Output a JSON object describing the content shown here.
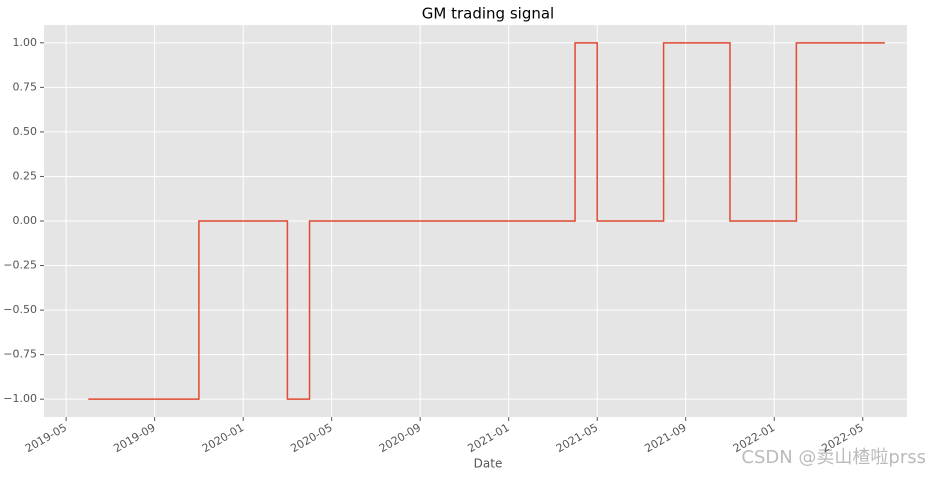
{
  "chart_data": {
    "type": "line",
    "title": "GM trading signal",
    "xlabel": "Date",
    "watermark": "CSDN @卖山楂啦prss",
    "x": [
      "2019-06",
      "2019-11",
      "2019-11",
      "2020-03",
      "2020-03",
      "2020-04",
      "2020-04",
      "2021-04",
      "2021-04",
      "2021-05",
      "2021-05",
      "2021-08",
      "2021-08",
      "2021-11",
      "2021-11",
      "2022-02",
      "2022-02",
      "2022-06"
    ],
    "values": [
      -1,
      -1,
      0,
      0,
      -1,
      -1,
      0,
      0,
      1,
      1,
      0,
      0,
      1,
      1,
      0,
      0,
      1,
      1
    ],
    "color": "#e24a33",
    "xlim": [
      "2019-04",
      "2022-07"
    ],
    "xticks": [
      "2019-05",
      "2019-09",
      "2020-01",
      "2020-05",
      "2020-09",
      "2021-01",
      "2021-05",
      "2021-09",
      "2022-01",
      "2022-05"
    ],
    "ylim": [
      -1.1,
      1.1
    ],
    "yticks": [
      {
        "value": -1,
        "label": "−1.00"
      },
      {
        "value": -0.75,
        "label": "−0.75"
      },
      {
        "value": -0.5,
        "label": "−0.50"
      },
      {
        "value": -0.25,
        "label": "−0.25"
      },
      {
        "value": 0,
        "label": "0.00"
      },
      {
        "value": 0.25,
        "label": "0.25"
      },
      {
        "value": 0.5,
        "label": "0.50"
      },
      {
        "value": 0.75,
        "label": "0.75"
      },
      {
        "value": 1,
        "label": "1.00"
      }
    ],
    "grid": true
  }
}
